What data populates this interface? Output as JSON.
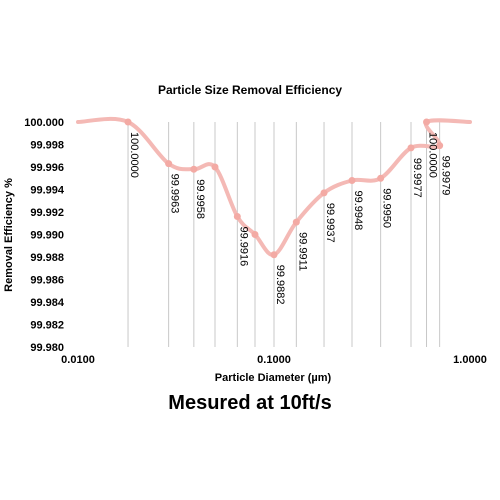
{
  "chart_data": {
    "type": "line",
    "title": "Particle Size Removal Efficiency",
    "xlabel": "Particle Diameter (µm)",
    "ylabel": "Removal Efficiency %",
    "x_scale": "log",
    "xlim": [
      0.01,
      1.0
    ],
    "ylim": [
      99.98,
      100.0
    ],
    "x_ticks": [
      0.01,
      0.1,
      1.0
    ],
    "x_tick_labels": [
      "0.0100",
      "0.1000",
      "1.0000"
    ],
    "y_ticks": [
      100.0,
      99.998,
      99.996,
      99.994,
      99.992,
      99.99,
      99.988,
      99.986,
      99.984,
      99.982,
      99.98
    ],
    "y_tick_labels": [
      "100.000",
      "99.998",
      "99.996",
      "99.994",
      "99.992",
      "99.990",
      "99.988",
      "99.986",
      "99.984",
      "99.982",
      "99.980"
    ],
    "grid": "vertical lines at measured points",
    "line_color": "#f4b9b5",
    "marker_color": "#f3aaa4",
    "grid_color": "#c8c8c8",
    "series": [
      {
        "x": [
          0.018,
          0.029,
          0.039,
          0.05,
          0.065,
          0.08,
          0.1,
          0.13,
          0.18,
          0.25,
          0.35,
          0.5,
          0.7
        ],
        "values": [
          100.0,
          99.9963,
          99.9958,
          99.996,
          99.9916,
          99.99,
          99.9882,
          99.9911,
          99.9937,
          99.9948,
          99.995,
          99.9977,
          99.9979
        ],
        "data_labels": [
          "100.0000",
          "99.9963",
          "99.9958",
          "",
          "99.9916",
          "",
          "99.9882",
          "99.9911",
          "99.9937",
          "99.9948",
          "99.9950",
          "99.9977",
          "99.9979"
        ]
      }
    ],
    "extra_labeled_point": {
      "x": 0.6,
      "value": 100.0,
      "label": "100.0000"
    }
  },
  "caption": "Mesured at 10ft/s"
}
